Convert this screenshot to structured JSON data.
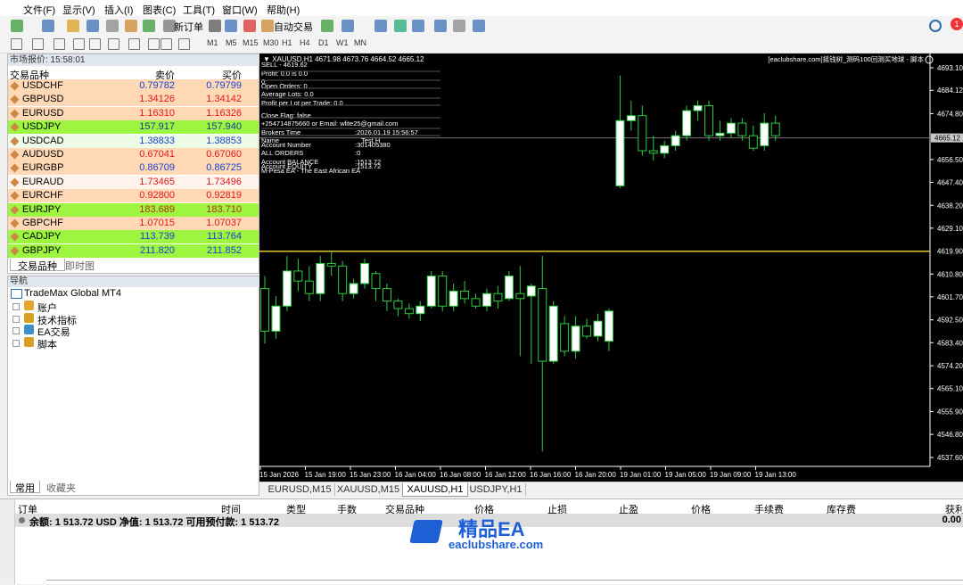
{
  "menu": [
    "文件(F)",
    "显示(V)",
    "插入(I)",
    "图表(C)",
    "工具(T)",
    "窗口(W)",
    "帮助(H)"
  ],
  "toolbar": {
    "new_order": "新订单",
    "auto_trading": "自动交易",
    "timeframes": [
      "M1",
      "M5",
      "M15",
      "M30",
      "H1",
      "H4",
      "D1",
      "W1",
      "MN"
    ]
  },
  "notifications": "1",
  "market_watch": {
    "title": "市场报价: 15:58:01",
    "columns": [
      "交易品种",
      "卖价",
      "买价"
    ],
    "rows": [
      [
        "USDCHF",
        "0.79782",
        "0.79799"
      ],
      [
        "GBPUSD",
        "1.34126",
        "1.34142"
      ],
      [
        "EURUSD",
        "1.16310",
        "1.16326"
      ],
      [
        "USDJPY",
        "157.917",
        "157.940"
      ],
      [
        "USDCAD",
        "1.38833",
        "1.38853"
      ],
      [
        "AUDUSD",
        "0.67041",
        "0.67060"
      ],
      [
        "EURGBP",
        "0.86709",
        "0.86725"
      ],
      [
        "EURAUD",
        "1.73465",
        "1.73496"
      ],
      [
        "EURCHF",
        "0.92800",
        "0.92819"
      ],
      [
        "EURJPY",
        "183.689",
        "183.710"
      ],
      [
        "GBPCHF",
        "1.07015",
        "1.07037"
      ],
      [
        "CADJPY",
        "113.739",
        "113.764"
      ],
      [
        "GBPJPY",
        "211.820",
        "211.852"
      ]
    ],
    "tabs": [
      "交易品种",
      "即时图"
    ]
  },
  "navigator": {
    "title": "导航",
    "root": "TradeMax Global MT4",
    "items": [
      "账户",
      "技术指标",
      "EA交易",
      "脚本"
    ],
    "tabs": [
      "常用",
      "收藏夹"
    ]
  },
  "chart": {
    "header": "XAUUSD,H1  4671.98 4673.76 4664.52 4665.12",
    "script_label": "[eaclubshare.com]摇钱树_测码100回测买地球 - 脚本",
    "info_lines": [
      "SELL - 4619.62",
      "Profit: 0.0 is 0.0",
      "0:",
      "Open Orders: 0",
      "Average Lots: 0.0",
      "Profit per Lot per Trade: 0.0",
      "Close Flag: false",
      "+254714875660 or Email: wlite25@gmail.com",
      "Brokers Time",
      "Name",
      "Account Number",
      "ALL ORDERS",
      "Account BALANCE",
      "Account EQUITY",
      "M-Pesa EA - The East African EA"
    ],
    "info_values": [
      ":2026.01.19 15:56:57",
      "Test H",
      ":301405380",
      ":0",
      ":1513.72",
      ":1513.72"
    ],
    "price_ticks": [
      {
        "value": 4693.1,
        "label": "4693.10"
      },
      4684.12,
      {
        "value": 4674.8,
        "label": "4674.80"
      },
      {
        "value": 4656.5,
        "label": "4656.50"
      },
      {
        "value": 4647.4,
        "label": "4647.40"
      },
      {
        "value": 4638.2,
        "label": "4638.20"
      },
      {
        "value": 4629.1,
        "label": "4629.10"
      },
      {
        "value": 4610.8,
        "label": "4610.80"
      },
      {
        "value": 4601.7,
        "label": "4601.70"
      },
      {
        "value": 4592.5,
        "label": "4592.50"
      },
      {
        "value": 4583.4,
        "label": "4583.40"
      },
      {
        "value": 4574.2,
        "label": "4574.20"
      },
      {
        "value": 4565.1,
        "label": "4565.10"
      },
      {
        "value": 4555.9,
        "label": "4555.90"
      },
      {
        "value": 4546.8,
        "label": "4546.80"
      },
      {
        "value": 4537.6,
        "label": "4537.60"
      }
    ],
    "current_price": 4665.12,
    "level": {
      "value": 4619.9,
      "label": "4619.90"
    },
    "time_labels": [
      "15 Jan 2026",
      "15 Jan 19:00",
      "15 Jan 23:00",
      "16 Jan 04:00",
      "16 Jan 08:00",
      "16 Jan 12:00",
      "16 Jan 16:00",
      "16 Jan 20:00",
      "19 Jan 01:00",
      "19 Jan 05:00",
      "19 Jan 09:00",
      "19 Jan 13:00"
    ],
    "candles": [
      {
        "o": 4605,
        "h": 4610,
        "l": 4583,
        "c": 4588
      },
      {
        "o": 4588,
        "h": 4602,
        "l": 4585,
        "c": 4598
      },
      {
        "o": 4598,
        "h": 4618,
        "l": 4596,
        "c": 4612
      },
      {
        "o": 4612,
        "h": 4617,
        "l": 4604,
        "c": 4608
      },
      {
        "o": 4608,
        "h": 4614,
        "l": 4600,
        "c": 4603
      },
      {
        "o": 4603,
        "h": 4618,
        "l": 4600,
        "c": 4615
      },
      {
        "o": 4615,
        "h": 4620,
        "l": 4610,
        "c": 4614
      },
      {
        "o": 4614,
        "h": 4616,
        "l": 4600,
        "c": 4603
      },
      {
        "o": 4603,
        "h": 4609,
        "l": 4601,
        "c": 4607
      },
      {
        "o": 4607,
        "h": 4617,
        "l": 4605,
        "c": 4615
      },
      {
        "o": 4611,
        "h": 4612,
        "l": 4600,
        "c": 4605
      },
      {
        "o": 4605,
        "h": 4607,
        "l": 4596,
        "c": 4600
      },
      {
        "o": 4600,
        "h": 4601,
        "l": 4594,
        "c": 4597
      },
      {
        "o": 4597,
        "h": 4599,
        "l": 4593,
        "c": 4595
      },
      {
        "o": 4595,
        "h": 4600,
        "l": 4592,
        "c": 4598
      },
      {
        "o": 4598,
        "h": 4612,
        "l": 4597,
        "c": 4610
      },
      {
        "o": 4610,
        "h": 4612,
        "l": 4596,
        "c": 4598
      },
      {
        "o": 4598,
        "h": 4607,
        "l": 4596,
        "c": 4604
      },
      {
        "o": 4604,
        "h": 4608,
        "l": 4599,
        "c": 4601
      },
      {
        "o": 4601,
        "h": 4603,
        "l": 4597,
        "c": 4598
      },
      {
        "o": 4598,
        "h": 4605,
        "l": 4596,
        "c": 4603
      },
      {
        "o": 4603,
        "h": 4606,
        "l": 4597,
        "c": 4600
      },
      {
        "o": 4601,
        "h": 4612,
        "l": 4600,
        "c": 4610
      },
      {
        "o": 4603,
        "h": 4614,
        "l": 4578,
        "c": 4601
      },
      {
        "o": 4602,
        "h": 4607,
        "l": 4575,
        "c": 4606
      },
      {
        "o": 4605,
        "h": 4618,
        "l": 4540,
        "c": 4576
      },
      {
        "o": 4576,
        "h": 4600,
        "l": 4575,
        "c": 4598
      },
      {
        "o": 4591,
        "h": 4594,
        "l": 4578,
        "c": 4580
      },
      {
        "o": 4580,
        "h": 4594,
        "l": 4577,
        "c": 4590
      },
      {
        "o": 4590,
        "h": 4593,
        "l": 4585,
        "c": 4586
      },
      {
        "o": 4586,
        "h": 4595,
        "l": 4584,
        "c": 4592
      },
      {
        "o": 4584,
        "h": 4597,
        "l": 4580,
        "c": 4596
      },
      {
        "o": 4646,
        "h": 4690,
        "l": 4645,
        "c": 4672
      },
      {
        "o": 4672,
        "h": 4680,
        "l": 4668,
        "c": 4674
      },
      {
        "o": 4674,
        "h": 4678,
        "l": 4658,
        "c": 4660
      },
      {
        "o": 4660,
        "h": 4666,
        "l": 4656,
        "c": 4659
      },
      {
        "o": 4659,
        "h": 4664,
        "l": 4657,
        "c": 4662
      },
      {
        "o": 4662,
        "h": 4668,
        "l": 4660,
        "c": 4666
      },
      {
        "o": 4666,
        "h": 4678,
        "l": 4664,
        "c": 4676
      },
      {
        "o": 4676,
        "h": 4680,
        "l": 4672,
        "c": 4678
      },
      {
        "o": 4678,
        "h": 4680,
        "l": 4664,
        "c": 4666
      },
      {
        "o": 4666,
        "h": 4672,
        "l": 4664,
        "c": 4667
      },
      {
        "o": 4667,
        "h": 4673,
        "l": 4665,
        "c": 4671
      },
      {
        "o": 4671,
        "h": 4673,
        "l": 4664,
        "c": 4666
      },
      {
        "o": 4666,
        "h": 4670,
        "l": 4660,
        "c": 4661
      },
      {
        "o": 4662,
        "h": 4675,
        "l": 4660,
        "c": 4671
      },
      {
        "o": 4671,
        "h": 4674,
        "l": 4664,
        "c": 4666
      }
    ]
  },
  "chart_tabs": [
    "EURUSD,M15",
    "XAUUSD,M15",
    "XAUUSD,H1",
    "USDJPY,H1"
  ],
  "terminal": {
    "columns": [
      "订单",
      "时间",
      "类型",
      "手数",
      "交易品种",
      "价格",
      "止损",
      "止盈",
      "价格",
      "手续费",
      "库存费",
      "获利"
    ],
    "balance": "余额: 1 513.72 USD  净值: 1 513.72  可用预付款: 1 513.72",
    "profit": "0.00"
  },
  "watermark": {
    "title": "精品EA",
    "url": "eaclubshare.com"
  }
}
